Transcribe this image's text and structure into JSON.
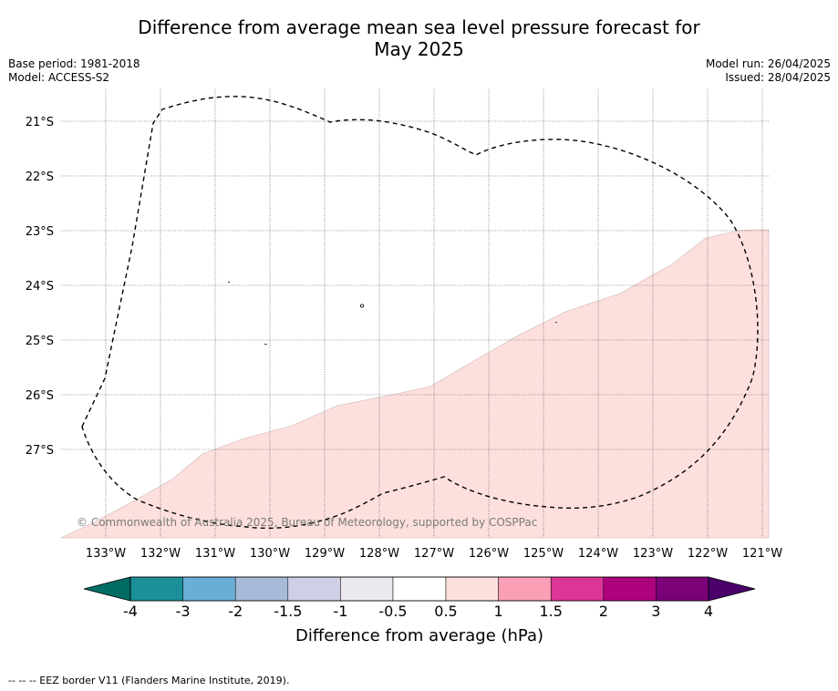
{
  "title": {
    "line1": "Difference from average mean sea level pressure forecast for",
    "line2": "May 2025"
  },
  "meta_left": {
    "base_period": "Base period: 1981-2018",
    "model": "Model: ACCESS-S2"
  },
  "meta_right": {
    "model_run": "Model run: 26/04/2025",
    "issued": "Issued: 28/04/2025"
  },
  "map": {
    "lat_labels": [
      "21°S",
      "22°S",
      "23°S",
      "24°S",
      "25°S",
      "26°S",
      "27°S"
    ],
    "lon_labels": [
      "133°W",
      "132°W",
      "131°W",
      "130°W",
      "129°W",
      "128°W",
      "127°W",
      "126°W",
      "125°W",
      "124°W",
      "123°W",
      "122°W",
      "121°W"
    ],
    "copyright": "© Commonwealth of Australia 2025, Bureau of Meteorology, supported by COSPPac",
    "shaded_category": "0.5 to 1",
    "shaded_color": "#fde0dd",
    "eez_style": "dashed"
  },
  "colorbar": {
    "ticks": [
      "-4",
      "-3",
      "-2",
      "-1.5",
      "-1",
      "-0.5",
      "0.5",
      "1",
      "1.5",
      "2",
      "3",
      "4"
    ],
    "colors": [
      "#1b9098",
      "#6aaed6",
      "#a7bbd9",
      "#cfcfe5",
      "#ebe9ef",
      "#ffffff",
      "#fde0dd",
      "#fa9fb5",
      "#dd3497",
      "#ae017e",
      "#7a0177"
    ],
    "under_color": "#006d65",
    "over_color": "#49006a",
    "label": "Difference from average (hPa)"
  },
  "footer": {
    "eez_legend": "--  --  -- EEZ border V11 (Flanders Marine Institute, 2019)."
  }
}
